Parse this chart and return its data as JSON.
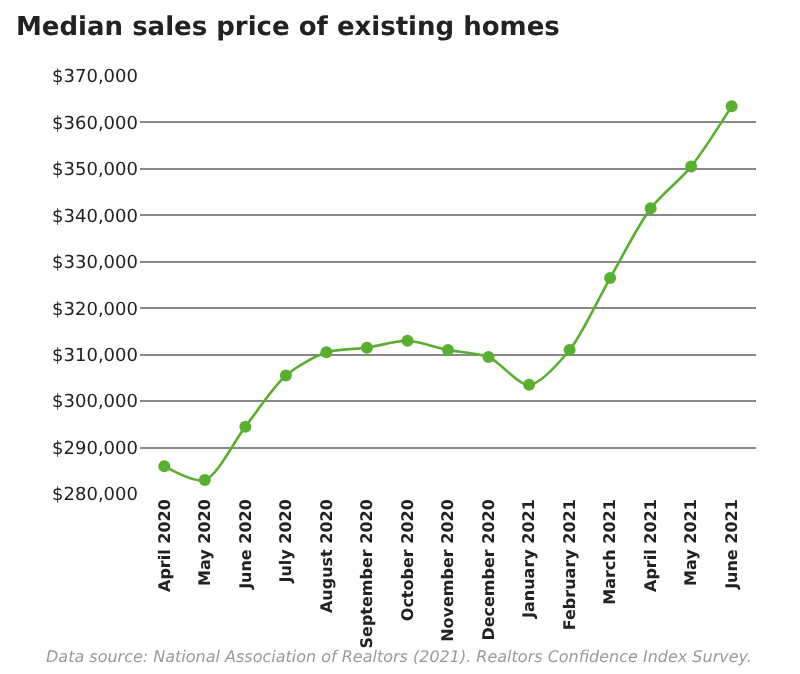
{
  "chart_data": {
    "type": "line",
    "title": "Median sales price of existing homes",
    "categories": [
      "April 2020",
      "May 2020",
      "June 2020",
      "July 2020",
      "August 2020",
      "September 2020",
      "October 2020",
      "November 2020",
      "December 2020",
      "January 2021",
      "February 2021",
      "March 2021",
      "April 2021",
      "May 2021",
      "June 2021"
    ],
    "series": [
      {
        "color": "#5aaf32",
        "values": [
          286000,
          283000,
          294500,
          305500,
          310500,
          311500,
          313000,
          311000,
          309500,
          303500,
          311000,
          326500,
          341500,
          350500,
          363500
        ]
      }
    ],
    "ylim": [
      280000,
      370000
    ],
    "yticks": [
      {
        "value": 280000,
        "label": "$280,000"
      },
      {
        "value": 290000,
        "label": "$290,000"
      },
      {
        "value": 300000,
        "label": "$300,000"
      },
      {
        "value": 310000,
        "label": "$310,000"
      },
      {
        "value": 320000,
        "label": "$320,000"
      },
      {
        "value": 330000,
        "label": "$330,000"
      },
      {
        "value": 340000,
        "label": "$340,000"
      },
      {
        "value": 350000,
        "label": "$350,000"
      },
      {
        "value": 360000,
        "label": "$360,000"
      },
      {
        "value": 370000,
        "label": "$370,000"
      }
    ],
    "grid": "y",
    "marker": "circle",
    "line_style": "solid",
    "legend": false,
    "annotations": [
      "Data source: National Association of Realtors (2021). Realtors Confidence Index Survey."
    ]
  }
}
